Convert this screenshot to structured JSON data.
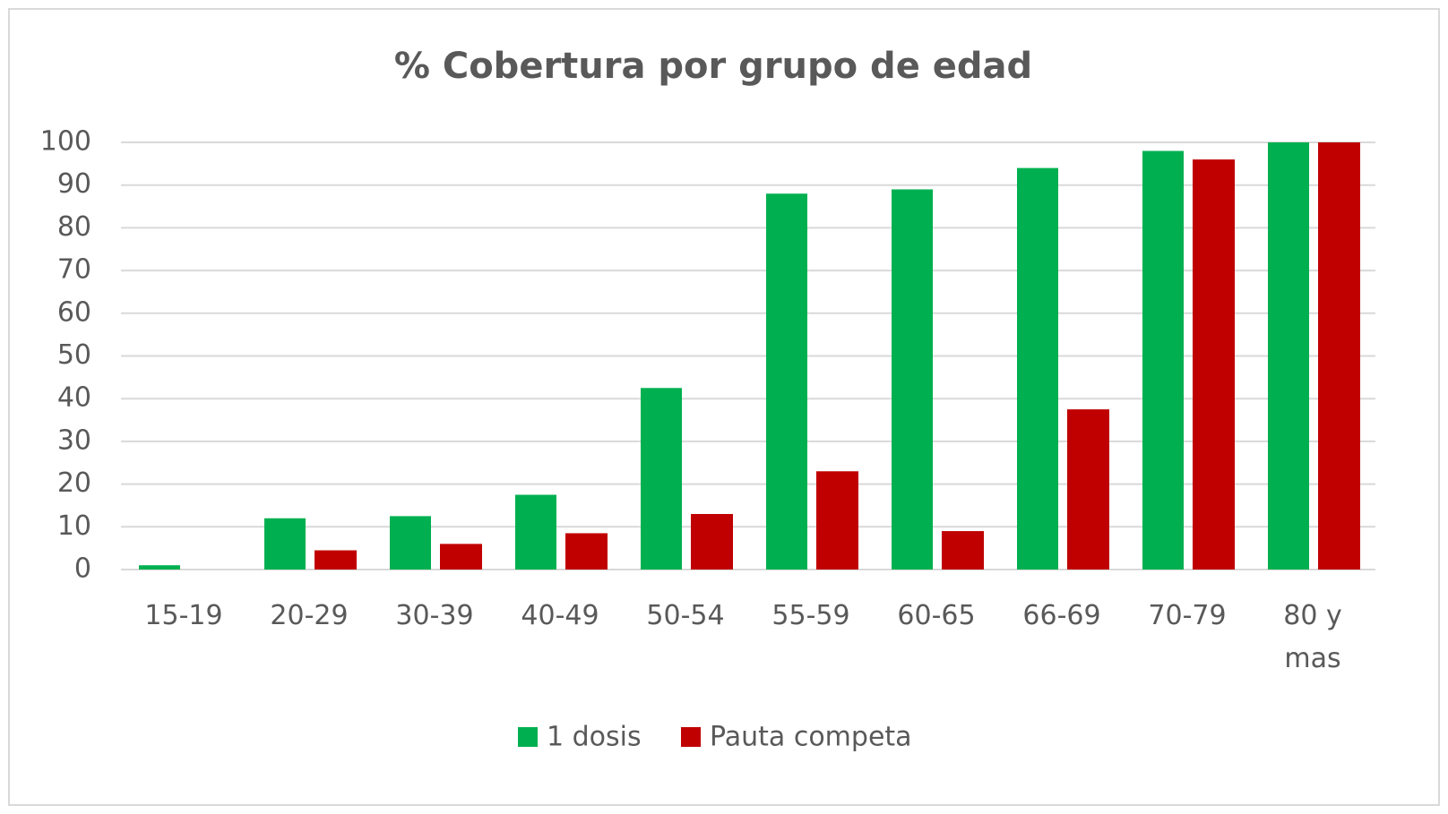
{
  "chart_data": {
    "type": "bar",
    "title": "% Cobertura por grupo de edad",
    "categories": [
      "15-19",
      "20-29",
      "30-39",
      "40-49",
      "50-54",
      "55-59",
      "60-65",
      "66-69",
      "70-79",
      "80 y mas"
    ],
    "series": [
      {
        "name": "1 dosis",
        "color": "#00b050",
        "values": [
          1,
          12,
          12.5,
          17.5,
          42.5,
          88,
          89,
          94,
          98,
          100
        ]
      },
      {
        "name": "Pauta competa",
        "color": "#c00000",
        "values": [
          0,
          4.5,
          6,
          8.5,
          13,
          23,
          9,
          37.5,
          96,
          100
        ]
      }
    ],
    "ylim": [
      0,
      100
    ],
    "yticks": [
      0,
      10,
      20,
      30,
      40,
      50,
      60,
      70,
      80,
      90,
      100
    ],
    "grid": true,
    "legend": "bottom"
  }
}
